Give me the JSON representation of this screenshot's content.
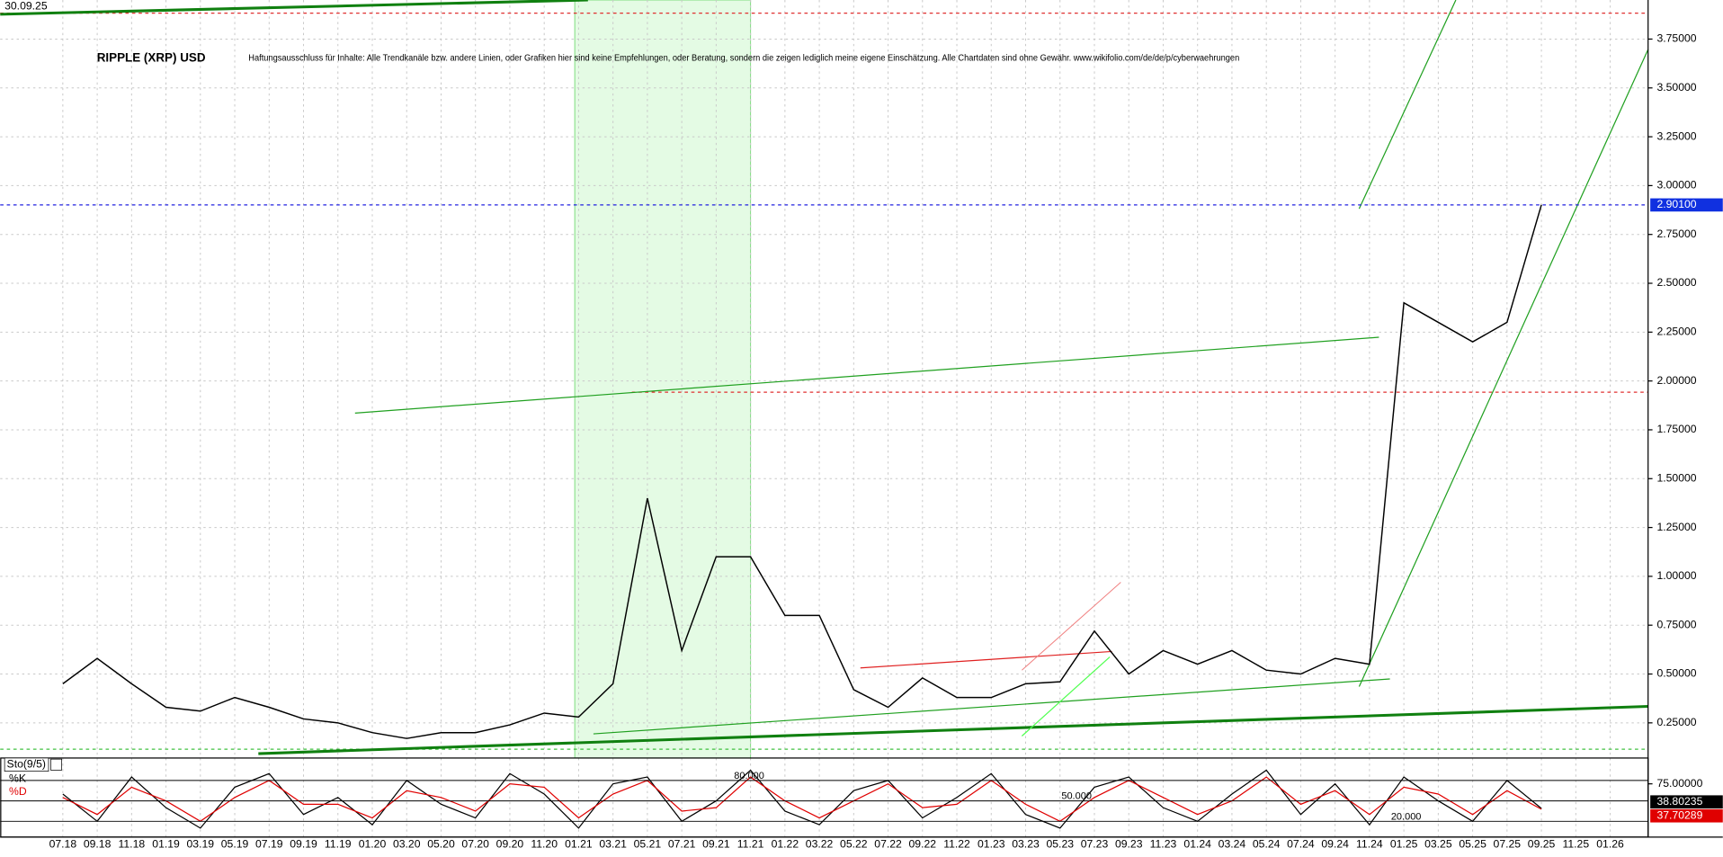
{
  "chart_data": [
    {
      "type": "line",
      "title": "RIPPLE (XRP) USD",
      "subtitle": "Haftungsausschluss für Inhalte: Alle Trendkanäle bzw. andere Linien, oder Grafiken hier sind keine Empfehlungen, oder Beratung, sondern die zeigen lediglich meine eigene Einschätzung. Alle Chartdaten sind ohne Gewähr. www.wikifolio.com/de/de/p/cyberwaehrungen",
      "date": "30.09.25",
      "categories": [
        "07.18",
        "09.18",
        "11.18",
        "01.19",
        "03.19",
        "05.19",
        "07.19",
        "09.19",
        "11.19",
        "01.20",
        "03.20",
        "05.20",
        "07.20",
        "09.20",
        "11.20",
        "01.21",
        "03.21",
        "05.21",
        "07.21",
        "09.21",
        "11.21",
        "01.22",
        "03.22",
        "05.22",
        "07.22",
        "09.22",
        "11.22",
        "01.23",
        "03.23",
        "05.23",
        "07.23",
        "09.23",
        "11.23",
        "01.24",
        "03.24",
        "05.24",
        "07.24",
        "09.24",
        "11.24",
        "01.25",
        "03.25",
        "05.25",
        "07.25",
        "09.25",
        "11.25",
        "01.26"
      ],
      "values": [
        0.45,
        0.58,
        0.45,
        0.33,
        0.31,
        0.38,
        0.33,
        0.27,
        0.25,
        0.2,
        0.17,
        0.2,
        0.2,
        0.24,
        0.3,
        0.28,
        0.45,
        1.4,
        0.62,
        1.1,
        1.1,
        0.8,
        0.8,
        0.42,
        0.33,
        0.48,
        0.38,
        0.38,
        0.45,
        0.46,
        0.72,
        0.5,
        0.62,
        0.55,
        0.62,
        0.52,
        0.5,
        0.58,
        0.55,
        2.4,
        2.3,
        2.2,
        2.3,
        2.901,
        null,
        null
      ],
      "color": "#000000",
      "current_price": {
        "value": 2.901,
        "label": "2.90100"
      },
      "ylim": [
        0.07,
        3.95
      ],
      "yticks": [
        {
          "value": 0.25,
          "label": "0.25000"
        },
        {
          "value": 0.5,
          "label": "0.50000"
        },
        {
          "value": 0.75,
          "label": "0.75000"
        },
        {
          "value": 1,
          "label": "1.00000"
        },
        {
          "value": 1.25,
          "label": "1.25000"
        },
        {
          "value": 1.5,
          "label": "1.50000"
        },
        {
          "value": 1.75,
          "label": "1.75000"
        },
        {
          "value": 2,
          "label": "2.00000"
        },
        {
          "value": 2.25,
          "label": "2.25000"
        },
        {
          "value": 2.5,
          "label": "2.50000"
        },
        {
          "value": 2.75,
          "label": "2.75000"
        },
        {
          "value": 3,
          "label": "3.00000"
        },
        {
          "value": 3.25,
          "label": "3.25000"
        },
        {
          "value": 3.5,
          "label": "3.50000"
        },
        {
          "value": 3.75,
          "label": "3.75000"
        }
      ],
      "grid": true
    },
    {
      "type": "line",
      "title": "Sto(9/5)",
      "series": [
        {
          "name": "%K",
          "color": "#000000",
          "values": [
            60,
            20,
            85,
            40,
            10,
            70,
            90,
            30,
            55,
            15,
            80,
            45,
            25,
            90,
            60,
            10,
            75,
            85,
            20,
            50,
            95,
            35,
            15,
            65,
            80,
            25,
            55,
            90,
            30,
            10,
            70,
            85,
            40,
            20,
            60,
            95,
            30,
            75,
            15,
            85,
            50,
            20,
            80,
            38.80235,
            null,
            null
          ]
        },
        {
          "name": "%D",
          "color": "#e00000",
          "values": [
            55,
            30,
            70,
            50,
            20,
            55,
            80,
            45,
            45,
            25,
            65,
            55,
            35,
            75,
            70,
            25,
            60,
            80,
            35,
            40,
            85,
            50,
            25,
            50,
            75,
            40,
            45,
            80,
            45,
            20,
            55,
            80,
            55,
            30,
            50,
            85,
            45,
            65,
            30,
            70,
            60,
            30,
            65,
            37.70289,
            null,
            null
          ]
        }
      ],
      "ylim": [
        0,
        100
      ],
      "yticks": [
        {
          "value": 75,
          "label": "75.00000"
        }
      ],
      "levels": [
        {
          "value": 80,
          "label": "80.000"
        },
        {
          "value": 50,
          "label": "50.000"
        },
        {
          "value": 20,
          "label": "20.000"
        }
      ]
    }
  ]
}
